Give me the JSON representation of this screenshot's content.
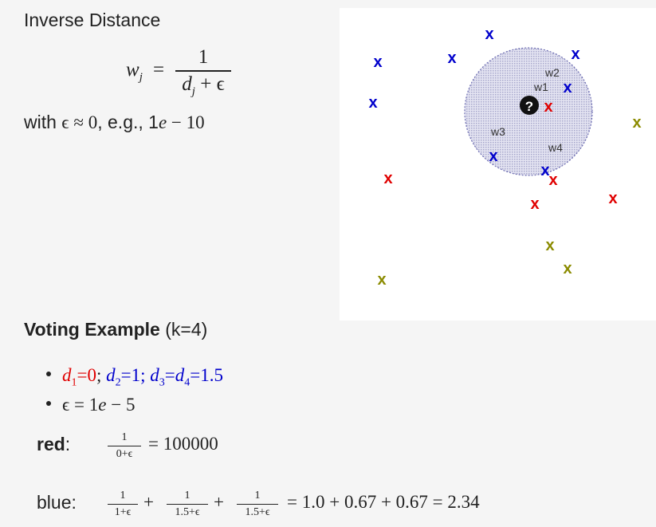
{
  "title": "Inverse Distance",
  "formula": {
    "lhs": "w",
    "lhs_sub": "j",
    "equals": "=",
    "numerator": "1",
    "denominator": "d",
    "denominator_sub": "j",
    "denominator_rest": " + ϵ"
  },
  "epsilon_note": {
    "prefix": "with ",
    "expr": "ϵ ≈ 0",
    "suffix": ", e.g., 1",
    "e": "e",
    "tail": " − 10"
  },
  "plot": {
    "query_symbol": "?",
    "labels": [
      "w1",
      "w2",
      "w3",
      "w4"
    ],
    "marks": [
      {
        "color": "blue",
        "symbol": "x"
      },
      {
        "color": "blue",
        "symbol": "x"
      },
      {
        "color": "blue",
        "symbol": "x"
      },
      {
        "color": "blue",
        "symbol": "x"
      },
      {
        "color": "blue",
        "symbol": "x"
      },
      {
        "color": "blue",
        "symbol": "x"
      },
      {
        "color": "blue",
        "symbol": "x"
      },
      {
        "color": "blue",
        "symbol": "x"
      },
      {
        "color": "red",
        "symbol": "x"
      },
      {
        "color": "red",
        "symbol": "x"
      },
      {
        "color": "red",
        "symbol": "x"
      },
      {
        "color": "red",
        "symbol": "x"
      },
      {
        "color": "red",
        "symbol": "x"
      },
      {
        "color": "olive",
        "symbol": "x"
      },
      {
        "color": "olive",
        "symbol": "x"
      },
      {
        "color": "olive",
        "symbol": "x"
      },
      {
        "color": "olive",
        "symbol": "x"
      }
    ],
    "colors": {
      "blue": "#0000cc",
      "red": "#e00000",
      "olive": "#8b8b00",
      "circle_fill": "#d6d6ec"
    }
  },
  "voting": {
    "title_bold": "Voting Example",
    "title_rest": " (k=4)",
    "bullet1": {
      "d1": "d",
      "d1_sub": "1",
      "d1_val": "=0",
      "sep": "; ",
      "d2": "d",
      "d2_sub": "2",
      "d2_val": "=1; ",
      "d3": "d",
      "d3_sub": "3",
      "d3_eq": "=",
      "d4": "d",
      "d4_sub": "4",
      "d4_val": "=1.5"
    },
    "bullet2": {
      "expr": "ϵ = 1",
      "e": "e",
      "tail": " − 5"
    },
    "red": {
      "label": "red",
      "colon": ":",
      "frac_num": "1",
      "frac_den": "0+ϵ",
      "result": "= 100000"
    },
    "blue": {
      "label": "blue:",
      "frac1_num": "1",
      "frac1_den": "1+ϵ",
      "plus": "+",
      "frac2_num": "1",
      "frac2_den": "1.5+ϵ",
      "frac3_num": "1",
      "frac3_den": "1.5+ϵ",
      "result": "= 1.0 + 0.67 + 0.67 = 2.34"
    }
  }
}
